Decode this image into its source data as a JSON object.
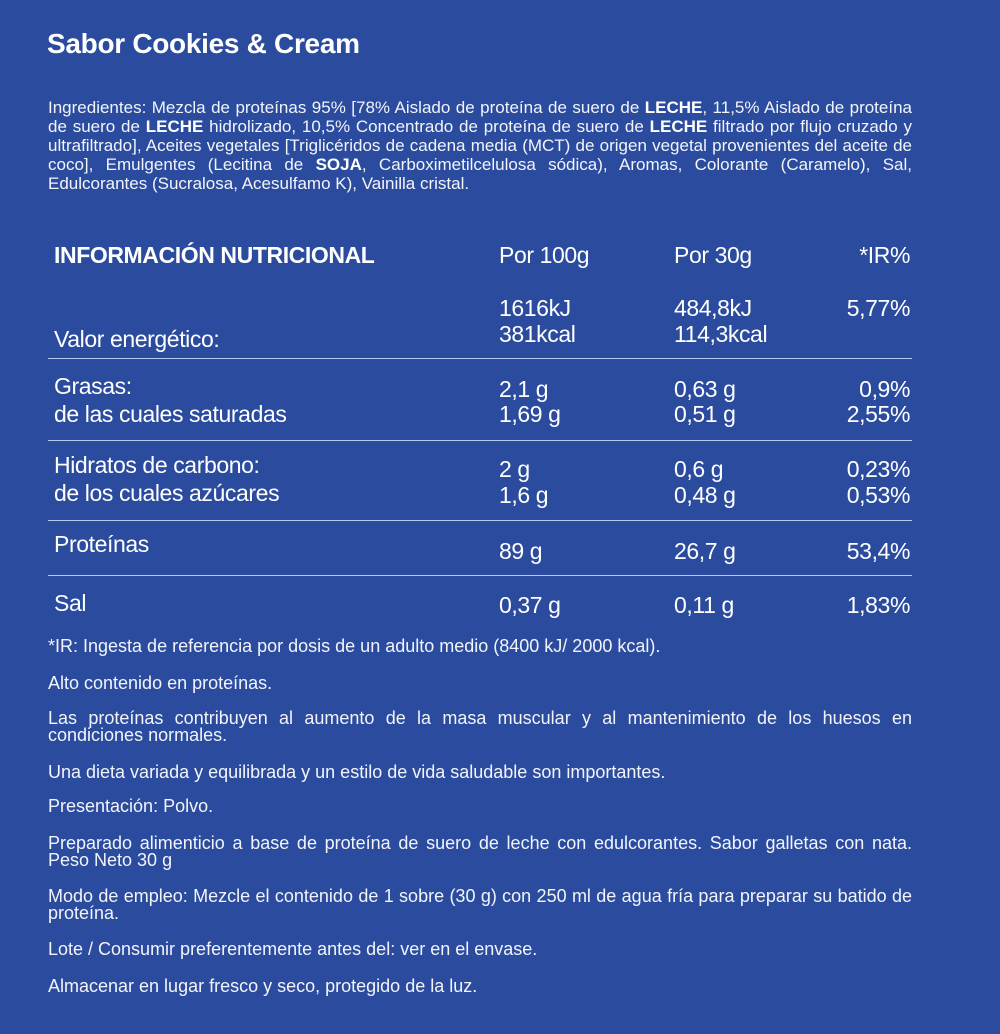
{
  "title": "Sabor Cookies & Cream",
  "ingredients": [
    {
      "text": "Ingredientes: Mezcla de proteínas 95% [78% Aislado de proteína de suero de ",
      "bold": false
    },
    {
      "text": "LECHE",
      "bold": true
    },
    {
      "text": ", 11,5% Aislado de proteína de suero de ",
      "bold": false
    },
    {
      "text": "LECHE",
      "bold": true
    },
    {
      "text": " hidrolizado, 10,5% Concentrado de proteína de suero de ",
      "bold": false
    },
    {
      "text": "LECHE",
      "bold": true
    },
    {
      "text": " filtrado por flujo cruzado y ultrafiltrado], Aceites vegetales [Triglicéridos de cadena media (MCT) de origen vegetal provenientes del aceite de coco],  Emulgentes (Lecitina de ",
      "bold": false
    },
    {
      "text": "SOJA",
      "bold": true
    },
    {
      "text": ", Carboximetilcelulosa sódica), Aromas, Colorante (Caramelo), Sal, Edulcorantes (Sucralosa, Acesulfamo K), Vainilla cristal.",
      "bold": false
    }
  ],
  "table": {
    "headers": [
      "INFORMACIÓN NUTRICIONAL",
      "Por 100g",
      "Por 30g",
      "*IR%"
    ],
    "energy": {
      "label": "Valor energético:",
      "per100_kj": "1616kJ",
      "per100_kcal": "381kcal",
      "per30_kj": "484,8kJ",
      "per30_kcal": "114,3kcal",
      "ir": "5,77%"
    },
    "fat": {
      "label": "Grasas:",
      "per100": "2,1 g",
      "per30": "0,63 g",
      "ir": "0,9%",
      "sub_label": "de las cuales saturadas",
      "sub_per100": "1,69 g",
      "sub_per30": "0,51 g",
      "sub_ir": "2,55%"
    },
    "carbs": {
      "label": "Hidratos de carbono:",
      "per100": "2 g",
      "per30": "0,6 g",
      "ir": "0,23%",
      "sub_label": "de los cuales azúcares",
      "sub_per100": "1,6 g",
      "sub_per30": "0,48 g",
      "sub_ir": "0,53%"
    },
    "protein": {
      "label": "Proteínas",
      "per100": "89 g",
      "per30": "26,7 g",
      "ir": "53,4%"
    },
    "salt": {
      "label": "Sal",
      "per100": "0,37 g",
      "per30": "0,11 g",
      "ir": "1,83%"
    }
  },
  "footer": [
    "*IR: Ingesta de referencia por dosis de un adulto medio (8400 kJ/ 2000 kcal).",
    "Alto contenido en proteínas.",
    "Las proteínas contribuyen al aumento de la masa muscular y al mantenimiento de los huesos en condiciones normales.",
    "Una dieta variada y equilibrada y un estilo de vida saludable son importantes.",
    "Presentación: Polvo.",
    "Preparado alimenticio a base de proteína de suero de leche con edulcorantes. Sabor galletas con nata. Peso Neto 30 g",
    "Modo de empleo: Mezcle el contenido de 1 sobre (30 g) con 250 ml de agua fría para preparar su batido de proteína.",
    "Lote / Consumir preferentemente antes del: ver en el envase.",
    "Almacenar en lugar fresco y seco, protegido de la luz."
  ],
  "colors": {
    "background": "#2b4c9e",
    "text": "#ffffff",
    "rule": "#b9c8ee"
  }
}
